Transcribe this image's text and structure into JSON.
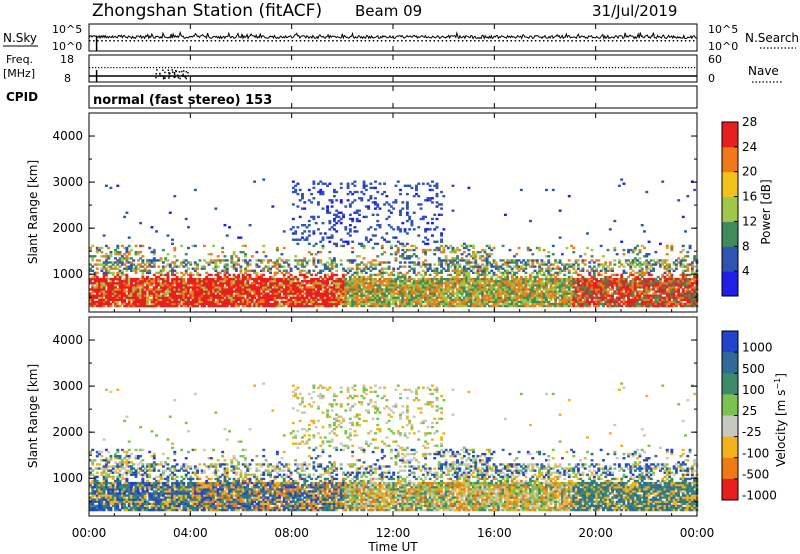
{
  "header": {
    "station": "Zhongshan Station (fitACF)",
    "beam": "Beam 09",
    "date": "31/Jul/2019"
  },
  "noise_panel": {
    "left_label": "N.Sky",
    "right_label": "N.Search",
    "left_ticks": [
      "10^5",
      "10^0"
    ],
    "right_ticks": [
      "10^5",
      "10^0"
    ]
  },
  "freq_panel": {
    "left_label_1": "Freq.",
    "left_label_2": "[MHz]",
    "left_ticks": [
      "18",
      "8"
    ],
    "right_label": "Nave",
    "right_ticks": [
      "60",
      "0"
    ]
  },
  "cpid_panel": {
    "label": "CPID",
    "text": "normal (fast stereo) 153"
  },
  "xaxis": {
    "label": "Time UT",
    "ticks": [
      "00:00",
      "04:00",
      "08:00",
      "12:00",
      "16:00",
      "20:00",
      "00:00"
    ]
  },
  "chart_data": [
    {
      "type": "heatmap",
      "title": "",
      "xlabel": "",
      "ylabel": "Slant Range [km]",
      "ylim": [
        180,
        4500
      ],
      "yticks": [
        1000,
        2000,
        3000,
        4000
      ],
      "colorbar": {
        "label": "Power [dB]",
        "ticks": [
          "4",
          "8",
          "12",
          "16",
          "20",
          "24",
          "28"
        ],
        "colors": [
          "#1f1fe8",
          "#2f55b0",
          "#3f8c5a",
          "#9fc84a",
          "#f2c21c",
          "#f07a18",
          "#e81f1f"
        ]
      }
    },
    {
      "type": "heatmap",
      "title": "",
      "xlabel": "Time UT",
      "ylabel": "Slant Range [km]",
      "ylim": [
        180,
        4500
      ],
      "yticks": [
        1000,
        2000,
        3000,
        4000
      ],
      "colorbar": {
        "label": "Velocity [m s^-1]",
        "ticks": [
          "1000",
          "500",
          "100",
          "25",
          "-25",
          "-100",
          "-500",
          "-1000"
        ],
        "colors": [
          "#2244cc",
          "#2f6a9a",
          "#3c8c6c",
          "#7cc24e",
          "#c8c8c0",
          "#f2b21c",
          "#f07a18",
          "#e81f1f"
        ]
      }
    }
  ]
}
